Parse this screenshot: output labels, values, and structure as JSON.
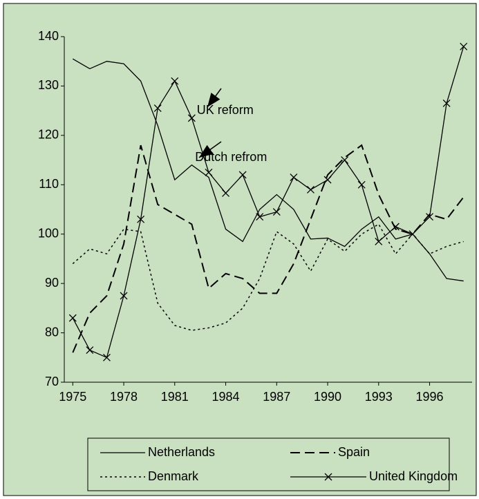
{
  "chart_data": {
    "type": "line",
    "x": [
      1975,
      1976,
      1977,
      1978,
      1979,
      1980,
      1981,
      1982,
      1983,
      1984,
      1985,
      1986,
      1987,
      1988,
      1989,
      1990,
      1991,
      1992,
      1993,
      1994,
      1995,
      1996,
      1997,
      1998
    ],
    "xlim": [
      1974.5,
      1998.5
    ],
    "xticks": [
      1975,
      1978,
      1981,
      1984,
      1987,
      1990,
      1993,
      1996
    ],
    "ylim": [
      70,
      140
    ],
    "yticks": [
      70,
      80,
      90,
      100,
      110,
      120,
      130,
      140
    ],
    "legend": "bottom",
    "series": [
      {
        "name": "Netherlands",
        "color": "#000000",
        "style": "solid",
        "values": [
          135.5,
          133.5,
          135,
          134.5,
          131,
          122,
          111,
          114,
          111.5,
          101,
          98.5,
          105,
          108,
          105,
          99,
          99.2,
          97.5,
          101,
          103.5,
          99,
          100,
          96,
          91,
          90.5
        ]
      },
      {
        "name": "Spain",
        "color": "#000000",
        "style": "dashed",
        "values": [
          76,
          84,
          87.5,
          98,
          118,
          106,
          104,
          102,
          89,
          92,
          91,
          88,
          88,
          94,
          103,
          112,
          115.5,
          118,
          108,
          101,
          100,
          104,
          103,
          107.5
        ]
      },
      {
        "name": "Denmark",
        "color": "#000000",
        "style": "dotted",
        "values": [
          94,
          97,
          96,
          101,
          100.5,
          86,
          81.5,
          80.5,
          81,
          82,
          85,
          91,
          100.5,
          98,
          92.5,
          99,
          96.5,
          100,
          102,
          96,
          100,
          96,
          97.5,
          98.5
        ]
      },
      {
        "name": "United Kingdom",
        "color": "#000000",
        "style": "solid",
        "marker": "x",
        "values": [
          83,
          76.5,
          75,
          87.5,
          103,
          125.5,
          131,
          123.5,
          112.5,
          108.3,
          112,
          103.5,
          104.5,
          111.5,
          109,
          111,
          115,
          110,
          98.5,
          101.5,
          100,
          103.5,
          126.5,
          138
        ]
      }
    ],
    "annotations": [
      {
        "text": "UK reform",
        "x": 1982.3,
        "y": 125
      },
      {
        "text": "Dutch refrom",
        "x": 1982.2,
        "y": 115.5
      }
    ]
  }
}
